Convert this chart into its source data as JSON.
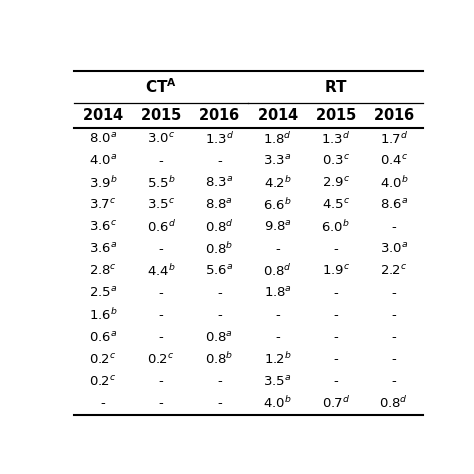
{
  "header2": [
    "2014",
    "2015",
    "2016",
    "2014",
    "2015",
    "2016"
  ],
  "rows": [
    [
      "8.0$^{a}$",
      "3.0$^{c}$",
      "1.3$^{d}$",
      "1.8$^{d}$",
      "1.3$^{d}$",
      "1.7$^{d}$"
    ],
    [
      "4.0$^{a}$",
      "-",
      "-",
      "3.3$^{a}$",
      "0.3$^{c}$",
      "0.4$^{c}$"
    ],
    [
      "3.9$^{b}$",
      "5.5$^{b}$",
      "8.3$^{a}$",
      "4.2$^{b}$",
      "2.9$^{c}$",
      "4.0$^{b}$"
    ],
    [
      "3.7$^{c}$",
      "3.5$^{c}$",
      "8.8$^{a}$",
      "6.6$^{b}$",
      "4.5$^{c}$",
      "8.6$^{a}$"
    ],
    [
      "3.6$^{c}$",
      "0.6$^{d}$",
      "0.8$^{d}$",
      "9.8$^{a}$",
      "6.0$^{b}$",
      "-"
    ],
    [
      "3.6$^{a}$",
      "-",
      "0.8$^{b}$",
      "-",
      "-",
      "3.0$^{a}$"
    ],
    [
      "2.8$^{c}$",
      "4.4$^{b}$",
      "5.6$^{a}$",
      "0.8$^{d}$",
      "1.9$^{c}$",
      "2.2$^{c}$"
    ],
    [
      "2.5$^{a}$",
      "-",
      "-",
      "1.8$^{a}$",
      "-",
      "-"
    ],
    [
      "1.6$^{b}$",
      "-",
      "-",
      "-",
      "-",
      "-"
    ],
    [
      "0.6$^{a}$",
      "-",
      "0.8$^{a}$",
      "-",
      "-",
      "-"
    ],
    [
      "0.2$^{c}$",
      "0.2$^{c}$",
      "0.8$^{b}$",
      "1.2$^{b}$",
      "-",
      "-"
    ],
    [
      "0.2$^{c}$",
      "-",
      "-",
      "3.5$^{a}$",
      "-",
      "-"
    ],
    [
      "-",
      "-",
      "-",
      "4.0$^{b}$",
      "0.7$^{d}$",
      "0.8$^{d}$"
    ]
  ],
  "background_color": "#ffffff",
  "text_color": "#000000",
  "data_fontsize": 9.5,
  "header_fontsize": 11,
  "year_fontsize": 10.5
}
